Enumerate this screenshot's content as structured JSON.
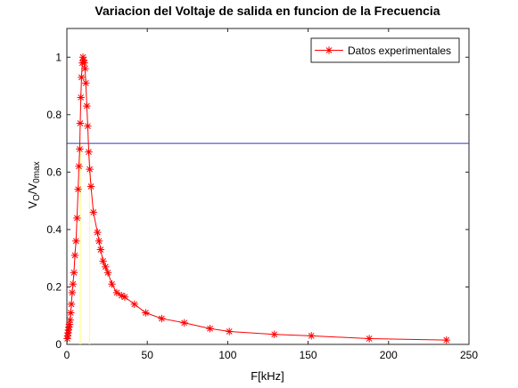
{
  "chart_data": {
    "type": "line",
    "title": "Variacion del Voltaje de salida en funcion de la Frecuencia",
    "xlabel": "F[kHz]",
    "ylabel": {
      "main": "V",
      "sub1": "O",
      "sep": "/V",
      "sub2": "0max"
    },
    "xlim": [
      0,
      250
    ],
    "ylim": [
      0,
      1.1
    ],
    "xticks": [
      0,
      50,
      100,
      150,
      200,
      250
    ],
    "yticks": [
      0,
      0.2,
      0.4,
      0.6,
      0.8,
      1
    ],
    "xtick_labels": [
      "0",
      "50",
      "100",
      "150",
      "200",
      "250"
    ],
    "ytick_labels": [
      "0",
      "0.2",
      "0.4",
      "0.6",
      "0.8",
      "1"
    ],
    "grid": false,
    "legend": {
      "position": "top-right",
      "entries": [
        "Datos experimentales"
      ]
    },
    "colors": {
      "series": "#ff0000",
      "reference": "#3333cc",
      "bandwidth": "#ffff80"
    },
    "reference_line": {
      "y": 0.7
    },
    "bandwidth_lines": [
      8.3,
      14.1
    ],
    "series": [
      {
        "name": "Datos experimentales",
        "marker": "asterisk",
        "points": [
          [
            0.3,
            0.02
          ],
          [
            0.5,
            0.03
          ],
          [
            0.8,
            0.04
          ],
          [
            1.0,
            0.05
          ],
          [
            1.3,
            0.06
          ],
          [
            1.6,
            0.07
          ],
          [
            2.0,
            0.085
          ],
          [
            2.4,
            0.11
          ],
          [
            2.8,
            0.14
          ],
          [
            3.3,
            0.18
          ],
          [
            3.8,
            0.21
          ],
          [
            4.4,
            0.25
          ],
          [
            5.0,
            0.31
          ],
          [
            5.7,
            0.36
          ],
          [
            6.3,
            0.44
          ],
          [
            7.0,
            0.54
          ],
          [
            7.5,
            0.62
          ],
          [
            8.0,
            0.68
          ],
          [
            8.3,
            0.77
          ],
          [
            8.7,
            0.86
          ],
          [
            9.1,
            0.93
          ],
          [
            9.6,
            0.98
          ],
          [
            10.0,
            1.0
          ],
          [
            10.4,
            0.99
          ],
          [
            10.8,
            0.98
          ],
          [
            11.3,
            0.96
          ],
          [
            11.8,
            0.91
          ],
          [
            12.4,
            0.83
          ],
          [
            13.0,
            0.76
          ],
          [
            13.6,
            0.67
          ],
          [
            14.2,
            0.61
          ],
          [
            15.0,
            0.55
          ],
          [
            16.5,
            0.46
          ],
          [
            19.0,
            0.39
          ],
          [
            20.0,
            0.36
          ],
          [
            21.0,
            0.33
          ],
          [
            22.5,
            0.29
          ],
          [
            24.0,
            0.27
          ],
          [
            25.5,
            0.25
          ],
          [
            28.0,
            0.21
          ],
          [
            31.0,
            0.18
          ],
          [
            34.0,
            0.17
          ],
          [
            36.0,
            0.165
          ],
          [
            42.0,
            0.14
          ],
          [
            49.0,
            0.11
          ],
          [
            59.0,
            0.09
          ],
          [
            73.0,
            0.075
          ],
          [
            89.0,
            0.055
          ],
          [
            101.0,
            0.045
          ],
          [
            129.0,
            0.035
          ],
          [
            152.0,
            0.03
          ],
          [
            188.0,
            0.02
          ],
          [
            236.0,
            0.015
          ]
        ]
      }
    ]
  }
}
